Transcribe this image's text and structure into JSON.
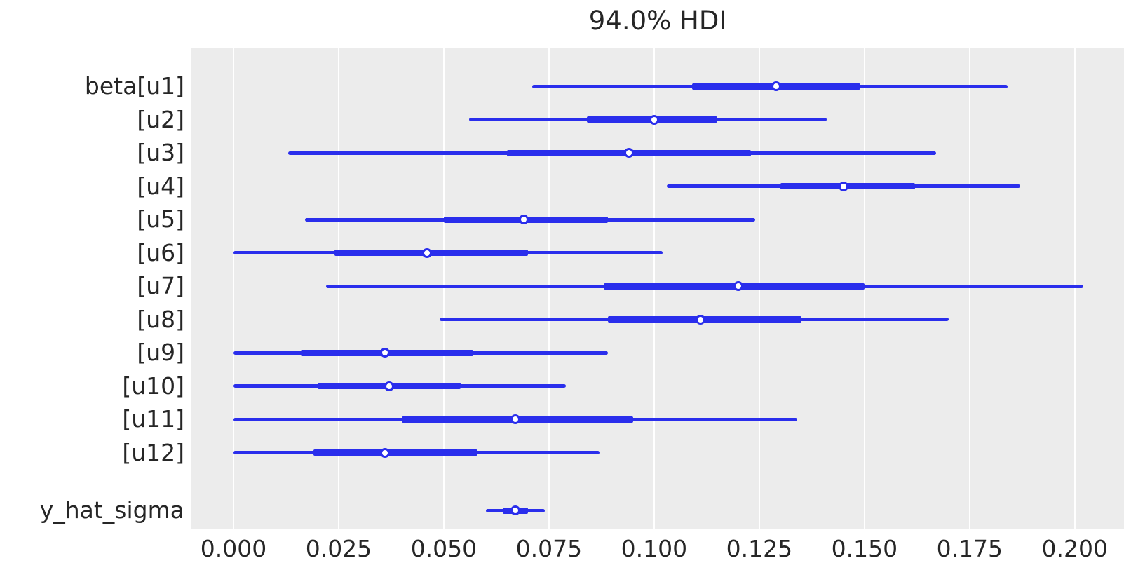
{
  "chart_data": {
    "type": "forest",
    "title": "94.0% HDI",
    "hdi_probability_label": "94.0%",
    "x_domain": [
      -0.01,
      0.2117
    ],
    "x_ticks": [
      {
        "value": 0.0,
        "label": "0.000"
      },
      {
        "value": 0.025,
        "label": "0.025"
      },
      {
        "value": 0.05,
        "label": "0.050"
      },
      {
        "value": 0.075,
        "label": "0.075"
      },
      {
        "value": 0.1,
        "label": "0.100"
      },
      {
        "value": 0.125,
        "label": "0.125"
      },
      {
        "value": 0.15,
        "label": "0.150"
      },
      {
        "value": 0.175,
        "label": "0.175"
      },
      {
        "value": 0.2,
        "label": "0.200"
      }
    ],
    "rows": [
      {
        "label": "beta[u1]",
        "hdi_lo": 0.071,
        "hdi_hi": 0.184,
        "q_lo": 0.109,
        "q_hi": 0.149,
        "point": 0.129
      },
      {
        "label": "[u2]",
        "hdi_lo": 0.056,
        "hdi_hi": 0.141,
        "q_lo": 0.084,
        "q_hi": 0.115,
        "point": 0.1
      },
      {
        "label": "[u3]",
        "hdi_lo": 0.013,
        "hdi_hi": 0.167,
        "q_lo": 0.065,
        "q_hi": 0.123,
        "point": 0.094
      },
      {
        "label": "[u4]",
        "hdi_lo": 0.103,
        "hdi_hi": 0.187,
        "q_lo": 0.13,
        "q_hi": 0.162,
        "point": 0.145
      },
      {
        "label": "[u5]",
        "hdi_lo": 0.017,
        "hdi_hi": 0.124,
        "q_lo": 0.05,
        "q_hi": 0.089,
        "point": 0.069
      },
      {
        "label": "[u6]",
        "hdi_lo": 0.0,
        "hdi_hi": 0.102,
        "q_lo": 0.024,
        "q_hi": 0.07,
        "point": 0.046
      },
      {
        "label": "[u7]",
        "hdi_lo": 0.022,
        "hdi_hi": 0.202,
        "q_lo": 0.088,
        "q_hi": 0.15,
        "point": 0.12
      },
      {
        "label": "[u8]",
        "hdi_lo": 0.049,
        "hdi_hi": 0.17,
        "q_lo": 0.089,
        "q_hi": 0.135,
        "point": 0.111
      },
      {
        "label": "[u9]",
        "hdi_lo": 0.0,
        "hdi_hi": 0.089,
        "q_lo": 0.016,
        "q_hi": 0.057,
        "point": 0.036
      },
      {
        "label": "[u10]",
        "hdi_lo": 0.0,
        "hdi_hi": 0.079,
        "q_lo": 0.02,
        "q_hi": 0.054,
        "point": 0.037
      },
      {
        "label": "[u11]",
        "hdi_lo": 0.0,
        "hdi_hi": 0.134,
        "q_lo": 0.04,
        "q_hi": 0.095,
        "point": 0.067
      },
      {
        "label": "[u12]",
        "hdi_lo": 0.0,
        "hdi_hi": 0.087,
        "q_lo": 0.019,
        "q_hi": 0.058,
        "point": 0.036
      },
      {
        "label": "y_hat_sigma",
        "hdi_lo": 0.06,
        "hdi_hi": 0.074,
        "q_lo": 0.064,
        "q_hi": 0.07,
        "point": 0.067,
        "separate_group": true
      }
    ],
    "legend_position": "none",
    "grid": true,
    "colors": {
      "line": "#2a2eec",
      "plot_background": "#ececec",
      "gridline": "#ffffff",
      "text": "#262626",
      "marker_fill": "#ffffff"
    }
  }
}
